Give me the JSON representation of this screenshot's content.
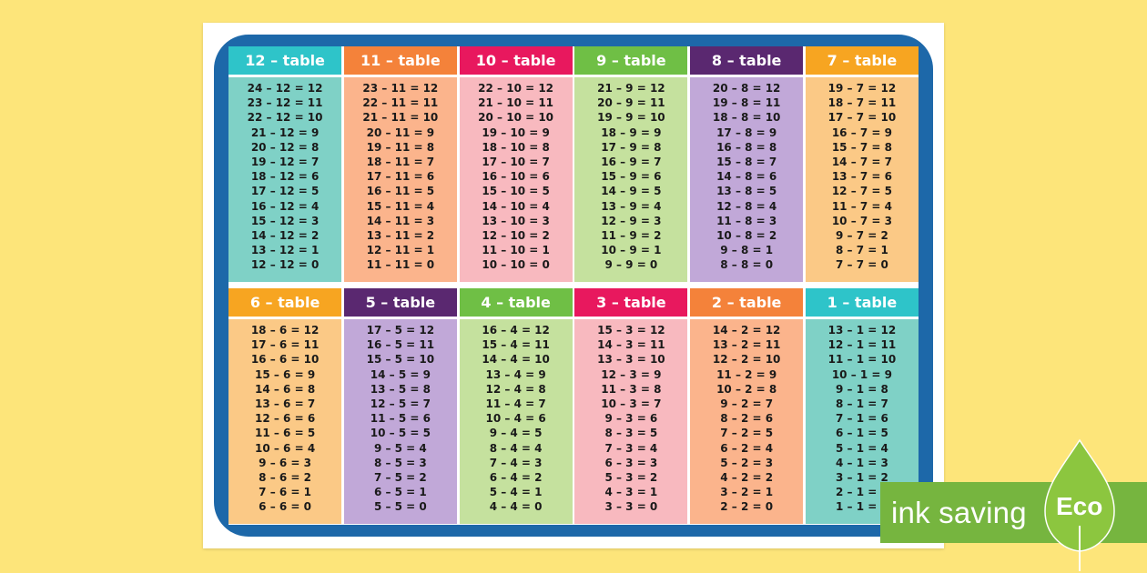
{
  "colors": {
    "background": "#fde57a",
    "frame": "#1d68a9",
    "badge": "#76b53f"
  },
  "tables": [
    {
      "title": "12 – table",
      "header_color": "#2ec4c9",
      "body_color": "#7fd1c6",
      "facts": [
        "24 – 12 = 12",
        "23 – 12 = 11",
        "22 – 12 = 10",
        "21 – 12 = 9",
        "20 – 12 = 8",
        "19 – 12 = 7",
        "18 – 12 = 6",
        "17 – 12 = 5",
        "16 – 12 = 4",
        "15 – 12 = 3",
        "14 – 12 = 2",
        "13 – 12 = 1",
        "12 – 12 = 0"
      ]
    },
    {
      "title": "11 – table",
      "header_color": "#f4823a",
      "body_color": "#fbb48c",
      "facts": [
        "23 – 11 = 12",
        "22 – 11 = 11",
        "21 – 11 = 10",
        "20 – 11 = 9",
        "19 – 11 = 8",
        "18 – 11 = 7",
        "17 – 11 = 6",
        "16 – 11 = 5",
        "15 – 11 = 4",
        "14 – 11 = 3",
        "13 – 11 = 2",
        "12 – 11 = 1",
        "11 – 11 = 0"
      ]
    },
    {
      "title": "10 – table",
      "header_color": "#e8185e",
      "body_color": "#f8b9bf",
      "facts": [
        "22 – 10 = 12",
        "21 – 10 = 11",
        "20 – 10 = 10",
        "19 – 10 = 9",
        "18 – 10 = 8",
        "17 – 10 = 7",
        "16 – 10 = 6",
        "15 – 10 = 5",
        "14 – 10 = 4",
        "13 – 10 = 3",
        "12 – 10 = 2",
        "11 – 10 = 1",
        "10 – 10 = 0"
      ]
    },
    {
      "title": "9 – table",
      "header_color": "#6fbf45",
      "body_color": "#c5e19e",
      "facts": [
        "21 – 9 = 12",
        "20 – 9 = 11",
        "19 – 9 = 10",
        "18 – 9 = 9",
        "17 – 9 = 8",
        "16 – 9 = 7",
        "15 – 9 = 6",
        "14 – 9 = 5",
        "13 – 9 = 4",
        "12 – 9 = 3",
        "11 – 9 = 2",
        "10 – 9 = 1",
        "9 – 9 = 0"
      ]
    },
    {
      "title": "8 – table",
      "header_color": "#5a2870",
      "body_color": "#c1a8d8",
      "facts": [
        "20 – 8 = 12",
        "19 – 8 = 11",
        "18 – 8 = 10",
        "17 – 8 = 9",
        "16 – 8 = 8",
        "15 – 8 = 7",
        "14 – 8 = 6",
        "13 – 8 = 5",
        "12 – 8 = 4",
        "11 – 8 = 3",
        "10 – 8 = 2",
        "9 – 8 = 1",
        "8 – 8 = 0"
      ]
    },
    {
      "title": "7 – table",
      "header_color": "#f7a521",
      "body_color": "#fbc986",
      "facts": [
        "19 – 7 = 12",
        "18 – 7 = 11",
        "17 – 7 = 10",
        "16 – 7 = 9",
        "15 – 7 = 8",
        "14 – 7 = 7",
        "13 – 7 = 6",
        "12 – 7 = 5",
        "11 – 7 = 4",
        "10 – 7 = 3",
        "9 – 7 = 2",
        "8 – 7 = 1",
        "7 – 7 = 0"
      ]
    },
    {
      "title": "6 – table",
      "header_color": "#f7a521",
      "body_color": "#fbc986",
      "facts": [
        "18 – 6 = 12",
        "17 – 6 = 11",
        "16 – 6 = 10",
        "15 – 6 = 9",
        "14 – 6 = 8",
        "13 – 6 = 7",
        "12 – 6 = 6",
        "11 – 6 = 5",
        "10 – 6 = 4",
        "9 – 6 = 3",
        "8 – 6 = 2",
        "7 – 6 = 1",
        "6 – 6 = 0"
      ]
    },
    {
      "title": "5 – table",
      "header_color": "#5a2870",
      "body_color": "#c1a8d8",
      "facts": [
        "17 – 5 = 12",
        "16 – 5 = 11",
        "15 – 5 = 10",
        "14 – 5 = 9",
        "13 – 5 = 8",
        "12 – 5 = 7",
        "11 – 5 = 6",
        "10 – 5 = 5",
        "9 – 5 = 4",
        "8 – 5 = 3",
        "7 – 5 = 2",
        "6 – 5 = 1",
        "5 – 5 = 0"
      ]
    },
    {
      "title": "4 – table",
      "header_color": "#6fbf45",
      "body_color": "#c5e19e",
      "facts": [
        "16 – 4 = 12",
        "15 – 4 = 11",
        "14 – 4 = 10",
        "13 – 4 = 9",
        "12 – 4 = 8",
        "11 – 4 = 7",
        "10 – 4 = 6",
        "9 – 4 = 5",
        "8 – 4 = 4",
        "7 – 4 = 3",
        "6 – 4 = 2",
        "5 – 4 = 1",
        "4 – 4 = 0"
      ]
    },
    {
      "title": "3 – table",
      "header_color": "#e8185e",
      "body_color": "#f8b9bf",
      "facts": [
        "15 – 3 = 12",
        "14 – 3 = 11",
        "13 – 3 = 10",
        "12 – 3 = 9",
        "11 – 3 = 8",
        "10 – 3 = 7",
        "9 – 3 = 6",
        "8 – 3 = 5",
        "7 – 3 = 4",
        "6 – 3 = 3",
        "5 – 3 = 2",
        "4 – 3 = 1",
        "3 – 3 = 0"
      ]
    },
    {
      "title": "2 – table",
      "header_color": "#f4823a",
      "body_color": "#fbb48c",
      "facts": [
        "14 – 2 = 12",
        "13 – 2 = 11",
        "12 – 2 = 10",
        "11 – 2 = 9",
        "10 – 2 = 8",
        "9 – 2 = 7",
        "8 – 2 = 6",
        "7 – 2 = 5",
        "6 – 2 = 4",
        "5 – 2 = 3",
        "4 – 2 = 2",
        "3 – 2 = 1",
        "2 – 2 = 0"
      ]
    },
    {
      "title": "1 – table",
      "header_color": "#2ec4c9",
      "body_color": "#7fd1c6",
      "facts": [
        "13 – 1 = 12",
        "12 – 1 = 11",
        "11 – 1 = 10",
        "10 – 1 = 9",
        "9 – 1 = 8",
        "8 – 1 = 7",
        "7 – 1 = 6",
        "6 – 1 = 5",
        "5 – 1 = 4",
        "4 – 1 = 3",
        "3 – 1 = 2",
        "2 – 1 = 1",
        "1 – 1 = 0"
      ]
    }
  ],
  "badge": {
    "text": "ink saving",
    "leaf_label": "Eco",
    "icon": "leaf-icon"
  }
}
